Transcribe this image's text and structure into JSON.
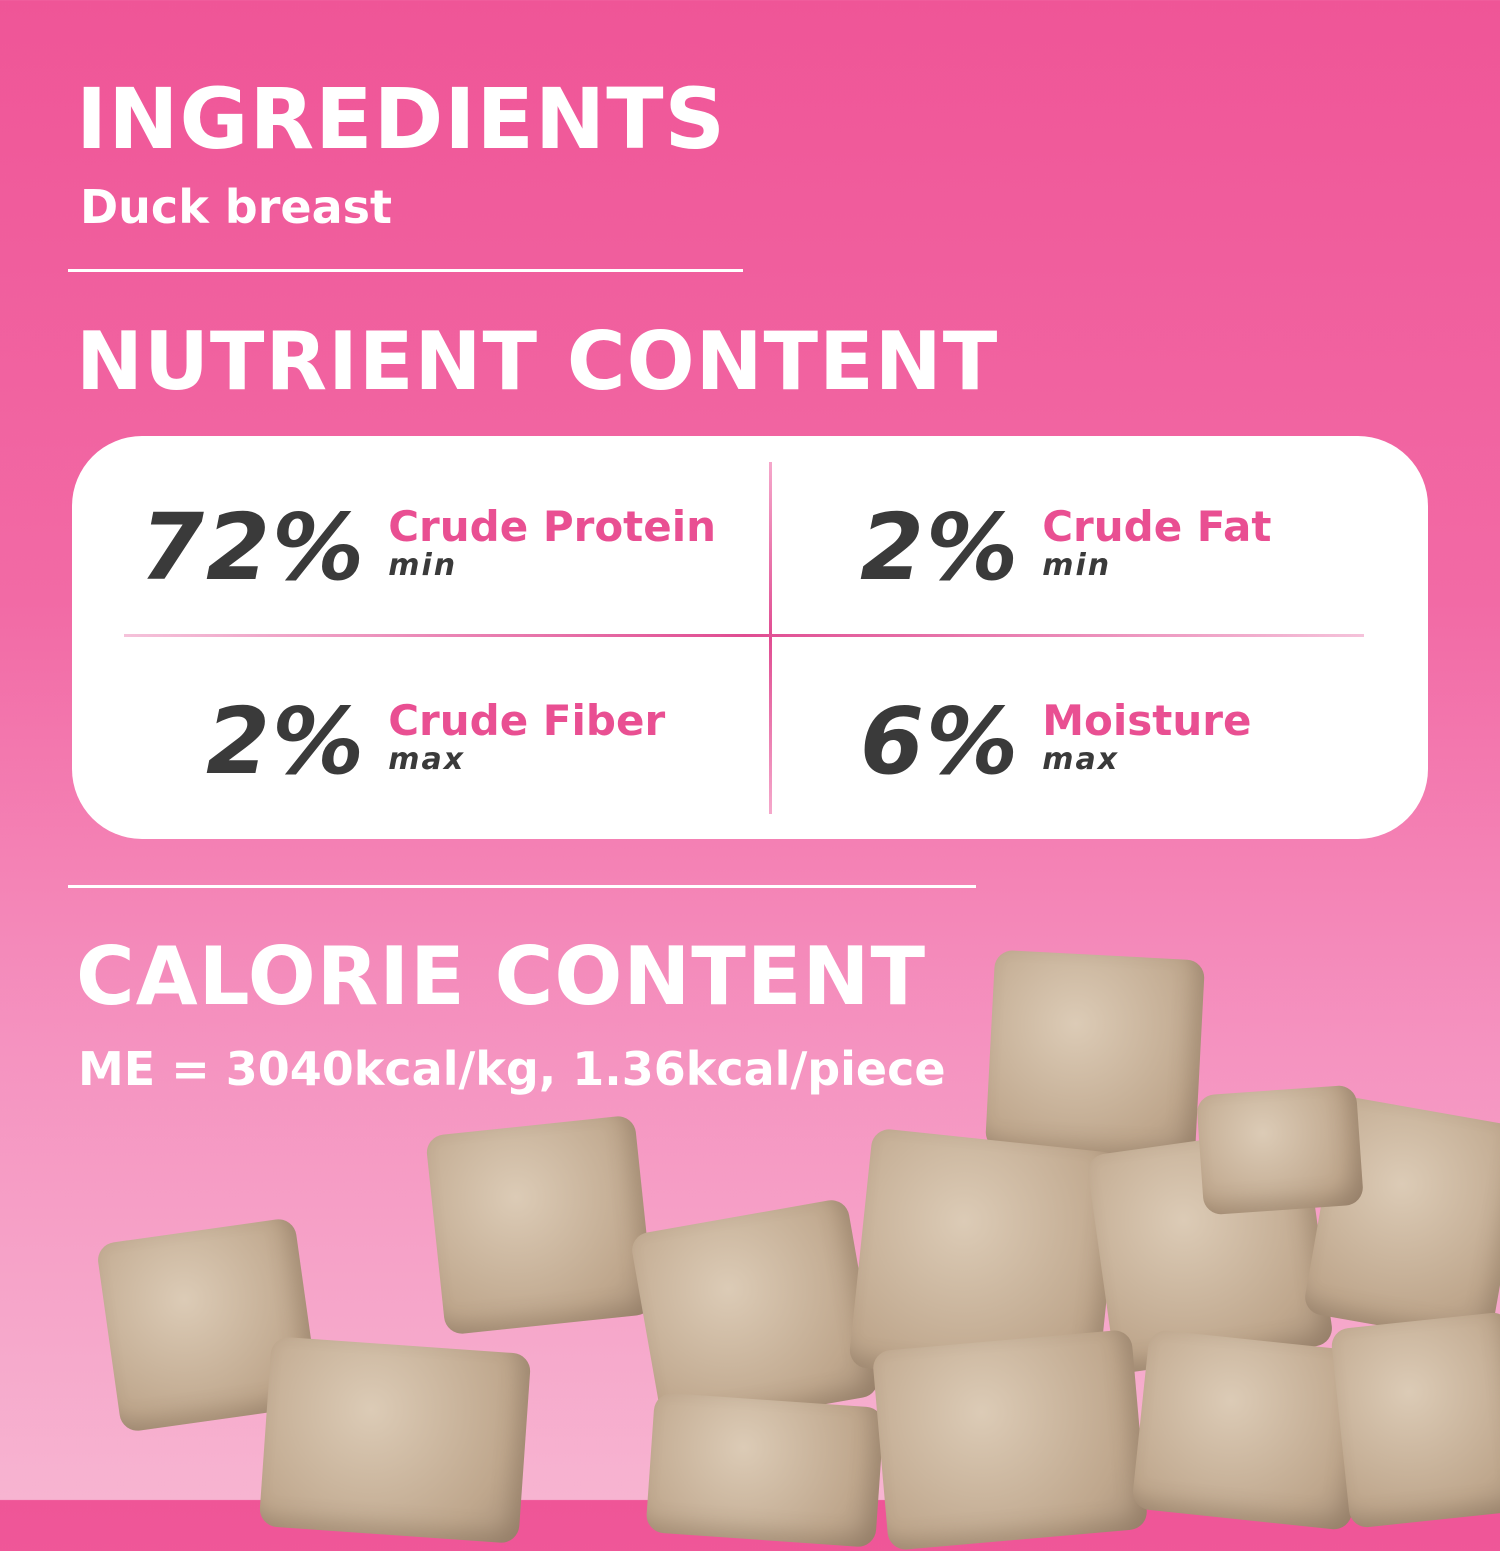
{
  "ingredients": {
    "title": "INGREDIENTS",
    "value": "Duck breast"
  },
  "nutrient": {
    "title": "NUTRIENT CONTENT",
    "items": [
      {
        "value": "72%",
        "name": "Crude Protein",
        "qualifier": "min"
      },
      {
        "value": "2%",
        "name": "Crude Fat",
        "qualifier": "min"
      },
      {
        "value": "2%",
        "name": "Crude Fiber",
        "qualifier": "max"
      },
      {
        "value": "6%",
        "name": "Moisture",
        "qualifier": "max"
      }
    ]
  },
  "calorie": {
    "title": "CALORIE CONTENT",
    "value": "ME = 3040kcal/kg, 1.36kcal/piece"
  },
  "colors": {
    "accent": "#e94f92",
    "dark": "#3a3a3a",
    "background_top": "#ef5597",
    "background_bottom": "#f7b4d1"
  }
}
